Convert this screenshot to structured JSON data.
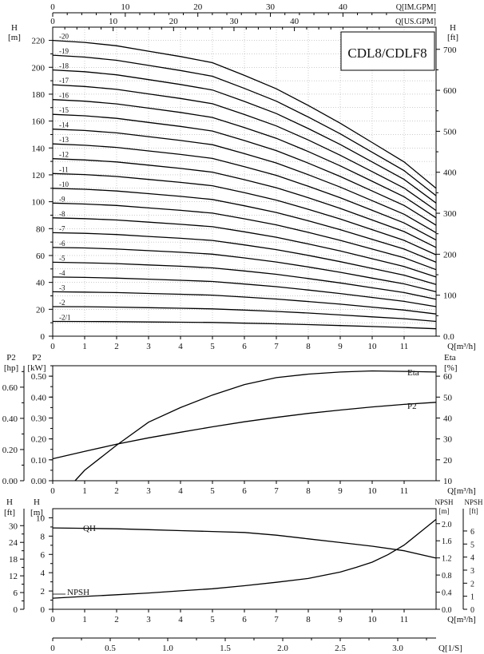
{
  "chart_data": [
    {
      "type": "line",
      "title": "CDL8/CDLF8",
      "xlabel": "Q[m³/h]",
      "ylabel": "H [m]",
      "y2label": "H [ft]",
      "top_axis1_label": "Q[IM.GPM]",
      "top_axis2_label": "Q[US.GPM]",
      "xlim": [
        0,
        12
      ],
      "ylim": [
        0,
        230
      ],
      "x_ticks": [
        "0",
        "1",
        "2",
        "3",
        "4",
        "5",
        "6",
        "7",
        "8",
        "9",
        "10",
        "11"
      ],
      "y_ticks": [
        "0",
        "20",
        "40",
        "60",
        "80",
        "100",
        "120",
        "140",
        "160",
        "180",
        "200",
        "220"
      ],
      "y2_ticks": [
        "0.0",
        "100",
        "200",
        "300",
        "400",
        "500",
        "600",
        "700"
      ],
      "imgpm_ticks": [
        "0",
        "10",
        "20",
        "30",
        "40"
      ],
      "usgpm_ticks": [
        "0",
        "10",
        "20",
        "30",
        "40"
      ],
      "series_x": [
        0,
        1,
        2,
        3,
        4,
        5,
        6,
        7,
        8,
        9,
        10,
        11,
        12
      ],
      "series": [
        {
          "name": "-2/1",
          "values": [
            11.0,
            10.9,
            10.8,
            10.6,
            10.4,
            10.2,
            9.7,
            9.2,
            8.6,
            7.9,
            7.2,
            6.5,
            5.5
          ]
        },
        {
          "name": "-2",
          "values": [
            22.0,
            21.9,
            21.6,
            21.2,
            20.8,
            20.3,
            19.4,
            18.4,
            17.2,
            15.8,
            14.4,
            13.0,
            11.0
          ]
        },
        {
          "name": "-3",
          "values": [
            33.0,
            32.8,
            32.4,
            31.8,
            31.2,
            30.5,
            29.1,
            27.6,
            25.8,
            23.8,
            21.6,
            19.4,
            16.5
          ]
        },
        {
          "name": "-4",
          "values": [
            44.0,
            43.7,
            43.2,
            42.4,
            41.6,
            40.7,
            38.8,
            36.8,
            34.3,
            31.7,
            28.8,
            25.9,
            22.0
          ]
        },
        {
          "name": "-5",
          "values": [
            55.0,
            54.6,
            54.0,
            53.0,
            52.0,
            50.8,
            48.5,
            46.0,
            42.9,
            39.6,
            36.0,
            32.4,
            27.5
          ]
        },
        {
          "name": "-6",
          "values": [
            66.0,
            65.6,
            64.8,
            63.6,
            62.4,
            61.0,
            58.2,
            55.2,
            51.5,
            47.5,
            43.2,
            38.9,
            33.0
          ]
        },
        {
          "name": "-7",
          "values": [
            77.0,
            76.5,
            75.6,
            74.2,
            72.8,
            71.2,
            67.9,
            64.4,
            60.1,
            55.4,
            50.4,
            45.4,
            38.5
          ]
        },
        {
          "name": "-8",
          "values": [
            88.0,
            87.4,
            86.4,
            84.8,
            83.2,
            81.4,
            77.6,
            73.6,
            68.6,
            63.4,
            57.6,
            51.8,
            44.0
          ]
        },
        {
          "name": "-9",
          "values": [
            99.0,
            98.3,
            97.2,
            95.4,
            93.6,
            91.5,
            87.3,
            82.8,
            77.2,
            71.3,
            64.8,
            58.3,
            49.5
          ]
        },
        {
          "name": "-10",
          "values": [
            110.0,
            109.3,
            108.0,
            106.0,
            104.0,
            101.7,
            97.0,
            92.0,
            85.8,
            79.2,
            72.0,
            64.8,
            55.0
          ]
        },
        {
          "name": "-11",
          "values": [
            121.0,
            120.2,
            118.8,
            116.6,
            114.4,
            111.9,
            106.7,
            101.2,
            94.4,
            87.1,
            79.2,
            71.3,
            60.5
          ]
        },
        {
          "name": "-12",
          "values": [
            132.0,
            131.1,
            129.6,
            127.2,
            124.8,
            122.0,
            116.4,
            110.4,
            103.0,
            95.0,
            86.4,
            77.8,
            66.0
          ]
        },
        {
          "name": "-13",
          "values": [
            143.0,
            142.0,
            140.4,
            137.8,
            135.2,
            132.2,
            126.1,
            119.6,
            111.5,
            103.0,
            93.6,
            84.2,
            71.5
          ]
        },
        {
          "name": "-14",
          "values": [
            154.0,
            153.0,
            151.2,
            148.4,
            145.6,
            142.4,
            135.8,
            128.8,
            120.1,
            110.9,
            100.8,
            90.7,
            77.0
          ]
        },
        {
          "name": "-15",
          "values": [
            165.0,
            163.9,
            162.0,
            159.0,
            156.0,
            152.6,
            145.5,
            138.0,
            128.7,
            118.8,
            108.0,
            97.2,
            82.5
          ]
        },
        {
          "name": "-16",
          "values": [
            176.0,
            174.8,
            172.8,
            169.6,
            166.4,
            162.7,
            155.2,
            147.2,
            137.3,
            126.7,
            115.2,
            103.7,
            88.0
          ]
        },
        {
          "name": "-17",
          "values": [
            187.0,
            185.7,
            183.6,
            180.2,
            176.8,
            172.9,
            164.9,
            156.4,
            145.9,
            134.6,
            122.4,
            110.2,
            93.5
          ]
        },
        {
          "name": "-18",
          "values": [
            198.0,
            196.7,
            194.4,
            190.8,
            187.2,
            183.1,
            174.6,
            165.6,
            154.4,
            142.6,
            129.6,
            116.6,
            99.0
          ]
        },
        {
          "name": "-19",
          "values": [
            209.0,
            207.6,
            205.2,
            201.4,
            197.6,
            193.3,
            184.3,
            174.8,
            163.0,
            150.5,
            136.8,
            123.1,
            104.5
          ]
        },
        {
          "name": "-20",
          "values": [
            220.0,
            218.5,
            216.0,
            212.0,
            208.0,
            203.4,
            194.0,
            184.0,
            171.6,
            158.4,
            144.0,
            129.6,
            110.0
          ]
        }
      ]
    },
    {
      "type": "line",
      "xlabel": "Q[m³/h]",
      "ylabel": "P2 [kW]",
      "ylabel_hp": "P2 [hp]",
      "y2label": "Eta [%]",
      "xlim": [
        0,
        12
      ],
      "ylim": [
        0,
        0.55
      ],
      "x_ticks": [
        "0",
        "1",
        "2",
        "3",
        "4",
        "5",
        "6",
        "7",
        "8",
        "9",
        "10",
        "11"
      ],
      "y_ticks": [
        "0.00",
        "0.10",
        "0.20",
        "0.30",
        "0.40",
        "0.50"
      ],
      "hp_ticks": [
        "0.00",
        "0.20",
        "0.40",
        "0.60"
      ],
      "y2_ticks": [
        "10",
        "20",
        "30",
        "40",
        "50",
        "60"
      ],
      "series": [
        {
          "name": "P2",
          "axis": "kW",
          "x": [
            0,
            1,
            2,
            3,
            4,
            5,
            6,
            7,
            8,
            9,
            10,
            11,
            12
          ],
          "values": [
            0.105,
            0.14,
            0.175,
            0.205,
            0.232,
            0.258,
            0.282,
            0.303,
            0.322,
            0.338,
            0.353,
            0.365,
            0.375
          ]
        },
        {
          "name": "Eta",
          "axis": "%",
          "x": [
            0.7,
            1,
            2,
            3,
            4,
            5,
            6,
            7,
            8,
            9,
            10,
            11,
            12
          ],
          "values": [
            10,
            15,
            27,
            38,
            45,
            51,
            56,
            59.3,
            61,
            62,
            62.5,
            62.3,
            62
          ]
        }
      ]
    },
    {
      "type": "line",
      "xlabel": "Q[m³/h]",
      "ylabel": "H [m]",
      "ylabel_ft": "H [ft]",
      "y2label": "NPSH [m]",
      "y3label": "NPSH [ft]",
      "bottom_axis_label": "Q[1/S]",
      "xlim": [
        0,
        12
      ],
      "ylim": [
        0,
        11
      ],
      "x_ticks": [
        "0",
        "1",
        "2",
        "3",
        "4",
        "5",
        "6",
        "7",
        "8",
        "9",
        "10",
        "11"
      ],
      "y_ticks": [
        "0",
        "2",
        "4",
        "6",
        "8",
        "10"
      ],
      "ft_ticks": [
        "0",
        "6",
        "12",
        "18",
        "24",
        "30"
      ],
      "npsh_m_ticks": [
        "0.0",
        "0.4",
        "0.8",
        "1.2",
        "1.6",
        "2.0"
      ],
      "npsh_ft_ticks": [
        "0",
        "1",
        "2",
        "3",
        "4",
        "5",
        "6"
      ],
      "ls_ticks": [
        "0",
        "0.5",
        "1.0",
        "1.5",
        "2.0",
        "2.5",
        "3.0"
      ],
      "series": [
        {
          "name": "QH",
          "axis": "m",
          "x": [
            0,
            1,
            2,
            3,
            4,
            5,
            6,
            7,
            8,
            9,
            10,
            11,
            12
          ],
          "values": [
            8.9,
            8.85,
            8.8,
            8.7,
            8.6,
            8.5,
            8.4,
            8.1,
            7.7,
            7.3,
            6.9,
            6.4,
            5.6
          ]
        },
        {
          "name": "NPSH",
          "axis": "npsh_m",
          "x": [
            0,
            1,
            2,
            3,
            4,
            5,
            6,
            7,
            8,
            9,
            9.5,
            10,
            10.5,
            11,
            11.5,
            12
          ],
          "values": [
            0.26,
            0.3,
            0.34,
            0.38,
            0.43,
            0.48,
            0.55,
            0.63,
            0.72,
            0.87,
            0.98,
            1.1,
            1.28,
            1.5,
            1.8,
            2.1
          ]
        }
      ]
    }
  ]
}
